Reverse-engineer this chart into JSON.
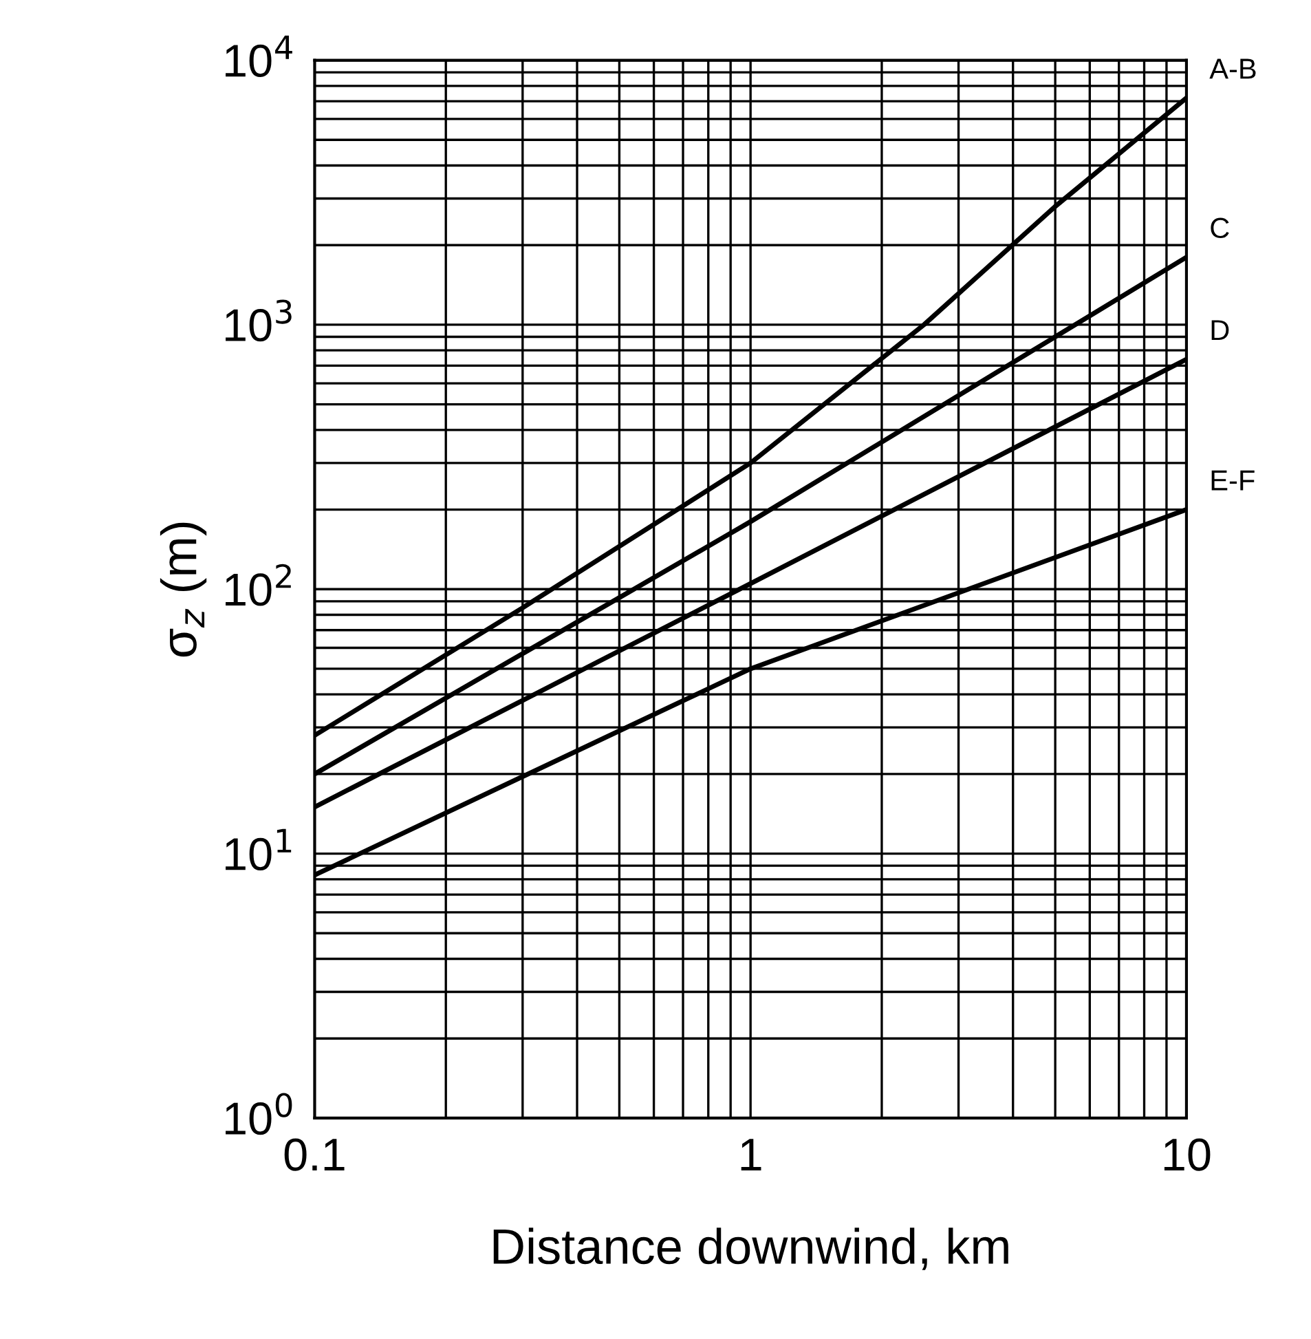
{
  "chart_data": {
    "type": "line",
    "xlabel": "Distance downwind, km",
    "ylabel": "σ$_{z}$ (m)",
    "log": "xy",
    "grid": true,
    "legend": false,
    "xlim": [
      0.1,
      10
    ],
    "ylim": [
      1,
      10000
    ],
    "xticks": [
      0.1,
      1,
      10
    ],
    "yticks": [
      {
        "value": 1,
        "label": "10$^{0}$"
      },
      {
        "value": 10,
        "label": "10$^{1}$"
      },
      {
        "value": 100,
        "label": "10$^{2}$"
      },
      {
        "value": 1000,
        "label": "10$^{3}$"
      },
      {
        "value": 10000,
        "label": "10$^{4}$"
      }
    ],
    "series": [
      {
        "name": "A-B",
        "color": "#000000",
        "x": [
          0.1,
          0.3,
          1,
          2.5,
          5,
          10
        ],
        "values": [
          28,
          85,
          300,
          1000,
          2800,
          7200
        ]
      },
      {
        "name": "C",
        "color": "#000000",
        "x": [
          0.1,
          1,
          10
        ],
        "values": [
          20,
          180,
          1800
        ]
      },
      {
        "name": "D",
        "color": "#000000",
        "x": [
          0.1,
          1,
          10
        ],
        "values": [
          15,
          105,
          740
        ]
      },
      {
        "name": "E-F",
        "color": "#000000",
        "x": [
          0.1,
          1,
          10
        ],
        "values": [
          8.3,
          50,
          200
        ]
      }
    ]
  }
}
